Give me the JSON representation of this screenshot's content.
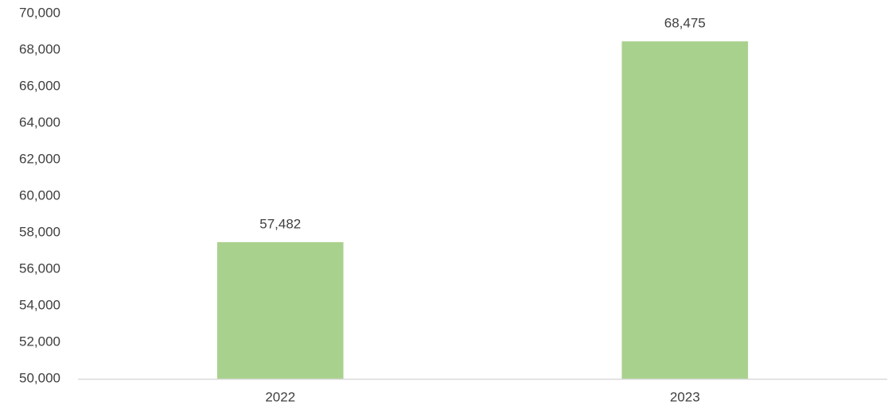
{
  "chart_data": {
    "type": "bar",
    "categories": [
      "2022",
      "2023"
    ],
    "values": [
      57482,
      68475
    ],
    "value_labels": [
      "57,482",
      "68,475"
    ],
    "color": "#a9d18e",
    "ylim": [
      50000,
      70000
    ],
    "yticks": [
      {
        "value": 50000,
        "label": "50,000"
      },
      {
        "value": 52000,
        "label": "52,000"
      },
      {
        "value": 54000,
        "label": "54,000"
      },
      {
        "value": 56000,
        "label": "56,000"
      },
      {
        "value": 58000,
        "label": "58,000"
      },
      {
        "value": 60000,
        "label": "60,000"
      },
      {
        "value": 62000,
        "label": "62,000"
      },
      {
        "value": 64000,
        "label": "64,000"
      },
      {
        "value": 66000,
        "label": "66,000"
      },
      {
        "value": 68000,
        "label": "68,000"
      },
      {
        "value": 70000,
        "label": "70,000"
      }
    ],
    "grid": false
  }
}
